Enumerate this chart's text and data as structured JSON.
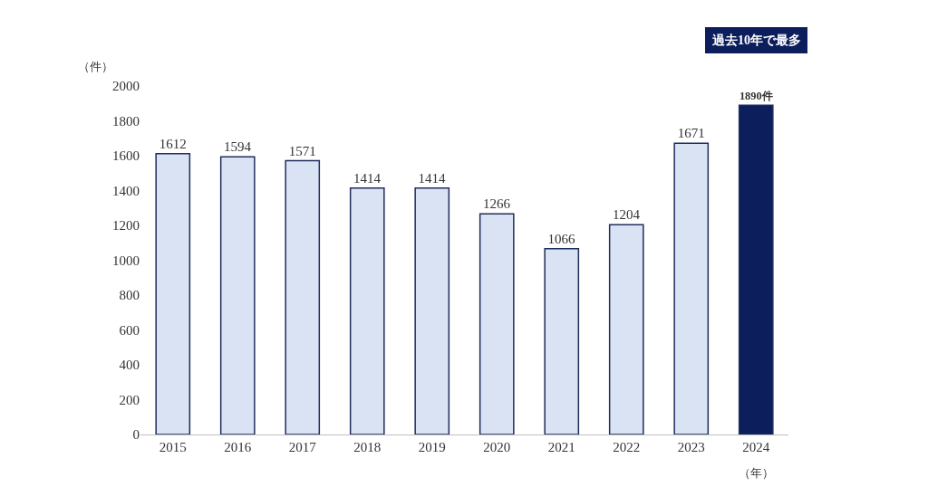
{
  "chart_data": {
    "type": "bar",
    "ylabel": "（件）",
    "xlabel": "（年）",
    "categories": [
      "2015",
      "2016",
      "2017",
      "2018",
      "2019",
      "2020",
      "2021",
      "2022",
      "2023",
      "2024"
    ],
    "values": [
      1612,
      1594,
      1571,
      1414,
      1414,
      1266,
      1066,
      1204,
      1671,
      1890
    ],
    "colors": [
      "#dae3f3",
      "#dae3f3",
      "#dae3f3",
      "#dae3f3",
      "#dae3f3",
      "#dae3f3",
      "#dae3f3",
      "#dae3f3",
      "#dae3f3",
      "#0c1f5c"
    ],
    "value_labels": [
      "1612",
      "1594",
      "1571",
      "1414",
      "1414",
      "1266",
      "1066",
      "1204",
      "1671",
      "1890件"
    ],
    "annotations": [
      "過去10年で最多"
    ],
    "ylim": [
      0,
      2000
    ],
    "yticks": [
      0,
      200,
      400,
      600,
      800,
      1000,
      1200,
      1400,
      1600,
      1800,
      2000
    ],
    "legend": false
  }
}
